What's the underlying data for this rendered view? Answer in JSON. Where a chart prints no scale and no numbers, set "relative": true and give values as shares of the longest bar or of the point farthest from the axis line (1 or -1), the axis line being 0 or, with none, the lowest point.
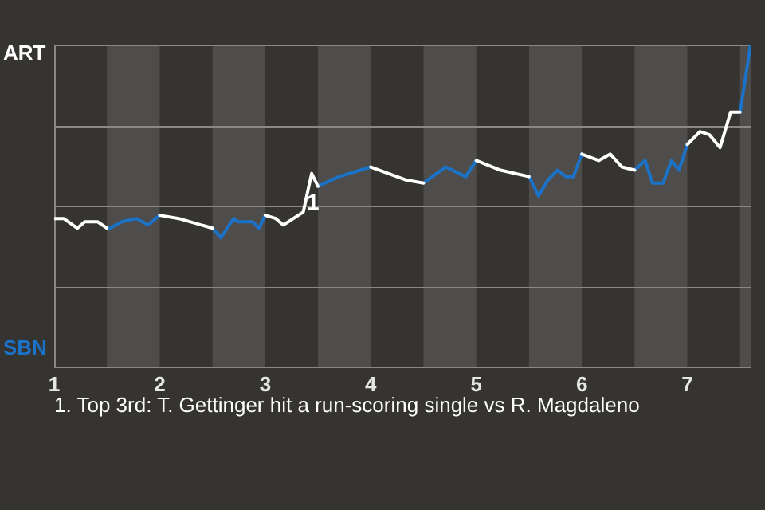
{
  "chart_data": {
    "type": "line",
    "relative": true,
    "grid": "y",
    "legend": false,
    "marker": "none",
    "x": [
      1,
      1.09,
      1.22,
      1.29,
      1.41,
      1.5,
      1.53,
      1.64,
      1.78,
      1.89,
      2,
      2.18,
      2.5,
      2.58,
      2.7,
      2.74,
      2.88,
      2.94,
      3,
      3.1,
      3.17,
      3.22,
      3.36,
      3.44,
      3.5,
      3.7,
      4,
      4.33,
      4.5,
      4.71,
      4.9,
      5,
      5.23,
      5.5,
      5.59,
      5.68,
      5.77,
      5.85,
      5.92,
      6,
      6.16,
      6.27,
      6.38,
      6.5,
      6.6,
      6.67,
      6.77,
      6.85,
      6.92,
      7,
      7.12,
      7.21,
      7.31,
      7.41,
      7.5,
      7.6
    ],
    "xlim": [
      1,
      7.6
    ],
    "xticks": [
      1,
      2,
      3,
      4,
      5,
      6,
      7
    ],
    "series": [
      {
        "color": "#ffffff",
        "values": [
          0.46,
          0.46,
          0.43,
          0.45,
          0.45,
          0.43,
          null,
          null,
          null,
          null,
          0.47,
          0.46,
          0.43,
          null,
          null,
          null,
          null,
          null,
          0.47,
          0.46,
          0.44,
          0.45,
          0.48,
          0.6,
          0.56,
          null,
          0.62,
          0.58,
          0.57,
          null,
          null,
          0.64,
          0.61,
          0.59,
          null,
          null,
          null,
          null,
          null,
          0.66,
          0.64,
          0.66,
          0.62,
          0.61,
          null,
          null,
          null,
          null,
          null,
          0.69,
          0.73,
          0.72,
          0.68,
          0.79,
          0.79,
          null
        ]
      },
      {
        "color": "#1a73c8",
        "values": [
          null,
          null,
          null,
          null,
          null,
          0.43,
          0.43,
          0.45,
          0.46,
          0.44,
          0.47,
          null,
          0.43,
          0.4,
          0.46,
          0.45,
          0.45,
          0.43,
          0.47,
          null,
          null,
          null,
          null,
          null,
          0.56,
          0.59,
          0.62,
          null,
          0.57,
          0.62,
          0.59,
          0.64,
          null,
          0.59,
          0.53,
          0.58,
          0.61,
          0.59,
          0.59,
          0.66,
          null,
          null,
          null,
          0.61,
          0.64,
          0.57,
          0.57,
          0.64,
          0.61,
          0.69,
          null,
          null,
          null,
          null,
          0.79,
          1
        ]
      }
    ],
    "bands": [
      {
        "axis": "x",
        "from": 1.5,
        "to": 2,
        "color": "#4f4d4b"
      },
      {
        "axis": "x",
        "from": 2.5,
        "to": 3,
        "color": "#4f4d4b"
      },
      {
        "axis": "x",
        "from": 3.5,
        "to": 4,
        "color": "#4f4d4b"
      },
      {
        "axis": "x",
        "from": 4.5,
        "to": 5,
        "color": "#4f4d4b"
      },
      {
        "axis": "x",
        "from": 5.5,
        "to": 6,
        "color": "#4f4d4b"
      },
      {
        "axis": "x",
        "from": 6.5,
        "to": 7,
        "color": "#4f4d4b"
      },
      {
        "axis": "x",
        "from": 7.5,
        "to": 7.6,
        "color": "#4f4d4b"
      }
    ],
    "annotations": [
      "ART",
      "SBN",
      {
        "text": "1",
        "x": 3.44,
        "y": 0.6
      },
      "1. Top 3rd: T. Gettinger hit a run-scoring single vs R. Magdaleno"
    ]
  }
}
